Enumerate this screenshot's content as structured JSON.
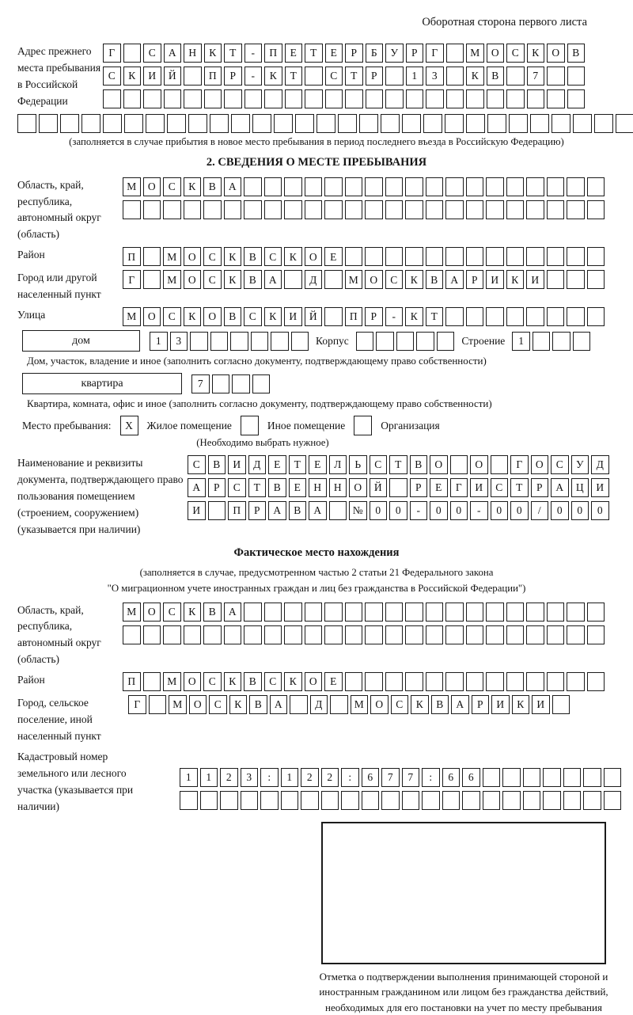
{
  "colors": {
    "ink": "#1b1b1b",
    "paper": "#ffffff"
  },
  "header_note": "Оборотная сторона первого листа",
  "prev_address": {
    "label": "Адрес прежнего места пребывания в Российской Федерации",
    "row1": "Г САНКТ-ПЕТЕРБУРГ МОСКОВ",
    "row2": "СКИЙ ПР-КТ СТР 13 КВ 7  ",
    "row3": "                        ",
    "row4": "                             ",
    "note": "(заполняется в случае прибытия в новое место пребывания в период последнего въезда в Российскую Федерацию)"
  },
  "section2": {
    "title": "2. СВЕДЕНИЯ О МЕСТЕ ПРЕБЫВАНИЯ",
    "region": {
      "label": "Область, край, республика, автономный округ (область)",
      "row1": "МОСКВА                  ",
      "row2": "                        "
    },
    "district": {
      "label": "Район",
      "row": "П МОСКВСКОЕ             "
    },
    "city": {
      "label": "Город или другой населенный пункт",
      "row": "Г МОСКВА Д МОСКВАРИКИ   "
    },
    "street": {
      "label": "Улица",
      "row": "МОСКОВСКИЙ ПР-КТ        "
    },
    "house": {
      "box_label": "дом",
      "cells": "13      ",
      "korpus_label": "Корпус",
      "korpus_cells": "     ",
      "stroenie_label": "Строение",
      "stroenie_cells": "1   ",
      "note": "Дом, участок, владение и иное (заполнить согласно документу, подтверждающему право собственности)"
    },
    "apartment": {
      "box_label": "квартира",
      "cells": "7   ",
      "note": "Квартира, комната, офис и иное (заполнить согласно документу, подтверждающему право собственности)"
    },
    "stay_type": {
      "label": "Место пребывания:",
      "options": [
        {
          "label": "Жилое помещение",
          "checked": "X"
        },
        {
          "label": "Иное помещение",
          "checked": ""
        },
        {
          "label": "Организация",
          "checked": ""
        }
      ],
      "note": "(Необходимо выбрать нужное)"
    },
    "document": {
      "label": "Наименование и реквизиты документа, подтверждающего право пользования помещением (строением, сооружением) (указывается при наличии)",
      "row1": "СВИДЕТЕЛЬСТВО О ГОСУД",
      "row2": "АРСТВЕННОЙ РЕГИСТРАЦИ",
      "row3": "И ПРАВА №00-00-00/000"
    }
  },
  "actual_location": {
    "title": "Фактическое место нахождения",
    "note1": "(заполняется в случае, предусмотренном частью 2 статьи 21 Федерального закона",
    "note2": "\"О миграционном учете иностранных граждан и лиц без гражданства в Российской Федерации\")",
    "region": {
      "label": "Область, край, республика, автономный округ (область)",
      "row1": "МОСКВА                  ",
      "row2": "                        "
    },
    "district": {
      "label": "Район",
      "row": "П МОСКВСКОЕ             "
    },
    "city": {
      "label": "Город, сельское поселение, иной населенный пункт",
      "row": "Г МОСКВА Д МОСКВАРИКИ "
    },
    "cadastral": {
      "label": "Кадастровый номер земельного или лесного участка (указывается при наличии)",
      "row1": "1123:122:677:66       ",
      "row2": "                      "
    }
  },
  "stamp": {
    "caption": "Отметка о подтверждении выполнения принимающей стороной и иностранным гражданином или лицом без гражданства действий, необходимых для его постановки на учет по месту пребывания"
  }
}
